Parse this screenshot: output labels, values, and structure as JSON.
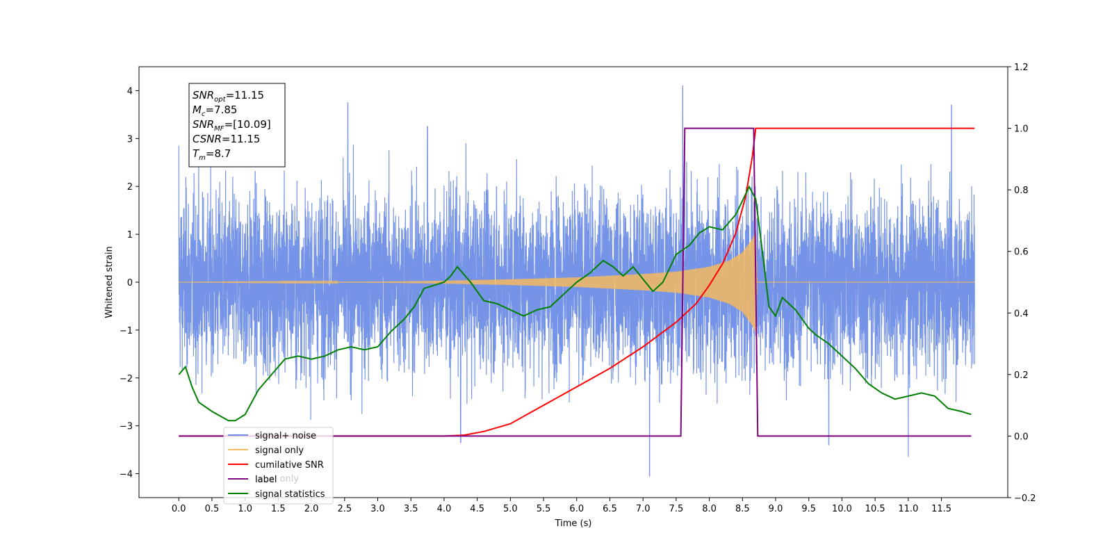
{
  "chart_data": {
    "type": "line",
    "title": "",
    "xlabel": "Time (s)",
    "ylabel": "Whitened strain",
    "y2label": "",
    "xlim": [
      -0.6,
      12.5
    ],
    "ylim": [
      -4.5,
      4.5
    ],
    "y2lim": [
      -0.2,
      1.2
    ],
    "grid": false,
    "legend_position": "lower-left",
    "x_ticks": [
      "0.0",
      "0.5",
      "1.0",
      "1.5",
      "2.0",
      "2.5",
      "3.0",
      "3.5",
      "4.0",
      "4.5",
      "5.0",
      "5.5",
      "6.0",
      "6.5",
      "7.0",
      "7.5",
      "8.0",
      "8.5",
      "9.0",
      "9.5",
      "10.0",
      "10.5",
      "11.0",
      "11.5"
    ],
    "y_ticks": [
      "4",
      "3",
      "2",
      "1",
      "0",
      "−1",
      "−2",
      "−3",
      "−4"
    ],
    "y2_ticks": [
      "1.2",
      "1.0",
      "0.8",
      "0.6",
      "0.4",
      "0.2",
      "0.0",
      "−0.2"
    ],
    "annotation": {
      "lines": [
        {
          "main": "SNR",
          "sub": "opt",
          "rest": "=11.15"
        },
        {
          "main": "M",
          "sub": "c",
          "rest": "=7.85"
        },
        {
          "main": "SNR",
          "sub": "MF",
          "rest": "=[10.09]"
        },
        {
          "main": "CSNR",
          "sub": "",
          "rest": "=11.15"
        },
        {
          "main": "T",
          "sub": "m",
          "rest": "=8.7"
        }
      ]
    },
    "legend": [
      {
        "label": "signal+ noise",
        "color": "#6f8ee6"
      },
      {
        "label": "signal only",
        "color": "#f5b95f"
      },
      {
        "label": "cumilative SNR",
        "color": "#ff0000"
      },
      {
        "label": "label",
        "color": "#800080"
      },
      {
        "label": "signal statistics",
        "color": "#007f00"
      }
    ],
    "legend_ghost_label": "label only",
    "series": [
      {
        "name": "signal+ noise",
        "axis": "left",
        "color": "#6f8ee6",
        "x_range": [
          0.0,
          12.0
        ],
        "std": 0.95,
        "peak_values": [
          {
            "x": 0.0,
            "y": 2.85
          },
          {
            "x": 2.55,
            "y": 3.75
          },
          {
            "x": 3.75,
            "y": 3.25
          },
          {
            "x": 7.6,
            "y": 4.1
          },
          {
            "x": 11.65,
            "y": 3.7
          },
          {
            "x": 7.1,
            "y": -4.05
          },
          {
            "x": 11.0,
            "y": -3.65
          },
          {
            "x": 4.25,
            "y": -3.35
          },
          {
            "x": 9.8,
            "y": -3.4
          }
        ]
      },
      {
        "name": "signal only",
        "axis": "left",
        "color": "#f5b95f",
        "x": [
          0.0,
          3.0,
          4.0,
          5.0,
          6.0,
          7.0,
          7.5,
          8.0,
          8.3,
          8.5,
          8.65,
          8.7,
          8.72,
          12.0
        ],
        "amplitude": [
          0.0,
          0.01,
          0.03,
          0.06,
          0.1,
          0.17,
          0.22,
          0.32,
          0.45,
          0.62,
          0.9,
          1.05,
          0.0,
          0.0
        ]
      },
      {
        "name": "cumilative SNR",
        "axis": "right",
        "color": "#ff0000",
        "x": [
          0.0,
          4.0,
          4.3,
          4.6,
          5.0,
          5.5,
          6.0,
          6.5,
          7.0,
          7.5,
          7.8,
          8.0,
          8.2,
          8.4,
          8.55,
          8.65,
          8.7,
          12.0
        ],
        "y": [
          0.0,
          0.0,
          0.003,
          0.015,
          0.04,
          0.1,
          0.16,
          0.22,
          0.29,
          0.37,
          0.43,
          0.49,
          0.56,
          0.66,
          0.78,
          0.91,
          1.0,
          1.0
        ]
      },
      {
        "name": "label",
        "axis": "right",
        "color": "#800080",
        "x": [
          0.0,
          7.57,
          7.63,
          8.67,
          8.73,
          11.95
        ],
        "y": [
          0.0,
          0.0,
          1.0,
          1.0,
          0.0,
          0.0
        ]
      },
      {
        "name": "signal statistics",
        "axis": "right",
        "color": "#007f00",
        "x": [
          0.0,
          0.1,
          0.2,
          0.3,
          0.5,
          0.75,
          0.85,
          1.0,
          1.2,
          1.4,
          1.6,
          1.8,
          2.0,
          2.2,
          2.4,
          2.6,
          2.8,
          3.0,
          3.2,
          3.4,
          3.55,
          3.7,
          3.85,
          4.0,
          4.1,
          4.2,
          4.4,
          4.6,
          4.8,
          5.0,
          5.2,
          5.4,
          5.6,
          5.8,
          6.0,
          6.2,
          6.4,
          6.55,
          6.7,
          6.85,
          7.0,
          7.15,
          7.3,
          7.5,
          7.7,
          7.85,
          8.0,
          8.2,
          8.4,
          8.6,
          8.7,
          8.8,
          8.9,
          9.0,
          9.1,
          9.3,
          9.5,
          9.6,
          9.8,
          10.0,
          10.2,
          10.4,
          10.6,
          10.8,
          11.0,
          11.2,
          11.4,
          11.6,
          11.8,
          11.95
        ],
        "y": [
          0.2,
          0.225,
          0.16,
          0.11,
          0.08,
          0.05,
          0.05,
          0.07,
          0.15,
          0.2,
          0.25,
          0.26,
          0.25,
          0.26,
          0.28,
          0.29,
          0.28,
          0.29,
          0.34,
          0.38,
          0.42,
          0.48,
          0.49,
          0.5,
          0.52,
          0.55,
          0.5,
          0.44,
          0.43,
          0.41,
          0.39,
          0.41,
          0.42,
          0.46,
          0.5,
          0.53,
          0.57,
          0.55,
          0.52,
          0.55,
          0.51,
          0.47,
          0.5,
          0.59,
          0.62,
          0.66,
          0.68,
          0.67,
          0.72,
          0.81,
          0.77,
          0.6,
          0.42,
          0.39,
          0.45,
          0.41,
          0.35,
          0.33,
          0.3,
          0.26,
          0.22,
          0.17,
          0.14,
          0.12,
          0.13,
          0.14,
          0.13,
          0.09,
          0.08,
          0.07
        ]
      }
    ]
  }
}
